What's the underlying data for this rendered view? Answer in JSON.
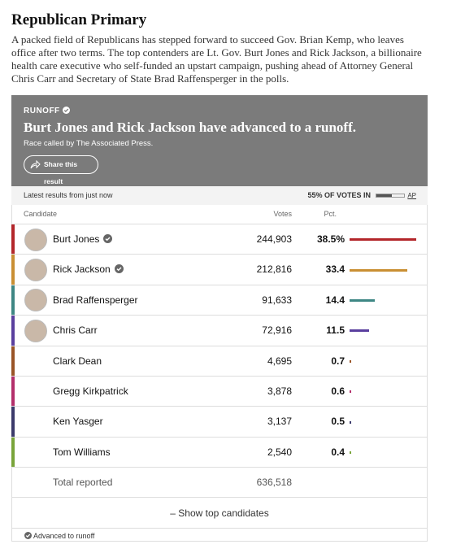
{
  "header": {
    "title": "Republican Primary",
    "intro": "A packed field of Republicans has stepped forward to succeed Gov. Brian Kemp, who leaves office after two terms. The top contenders are Lt. Gov. Burt Jones and Rick Jackson, a billionaire health care executive who self-funded an upstart campaign, pushing ahead of Attorney General Chris Carr and Secretary of State Brad Raffensperger in the polls."
  },
  "banner": {
    "tag": "RUNOFF",
    "headline": "Burt Jones and Rick Jackson have advanced to a runoff.",
    "called": "Race called by The Associated Press.",
    "share": "Share this result"
  },
  "status": {
    "latest": "Latest results from just now",
    "reporting_pct": 55,
    "reporting_label": "55% OF VOTES IN",
    "source": "AP"
  },
  "table": {
    "columns": [
      "Candidate",
      "Votes",
      "Pct."
    ],
    "rows": [
      {
        "name": "Burt Jones",
        "votes": "244,903",
        "pct": 38.5,
        "pct_label": "38.5%",
        "color": "#b3262a",
        "photo": true,
        "advanced": true
      },
      {
        "name": "Rick Jackson",
        "votes": "212,816",
        "pct": 33.4,
        "color": "#c98f33",
        "photo": true,
        "advanced": true
      },
      {
        "name": "Brad Raffensperger",
        "votes": "91,633",
        "pct": 14.4,
        "color": "#3e8784",
        "photo": true,
        "advanced": false
      },
      {
        "name": "Chris Carr",
        "votes": "72,916",
        "pct": 11.5,
        "color": "#5a3f9e",
        "photo": true,
        "advanced": false
      },
      {
        "name": "Clark Dean",
        "votes": "4,695",
        "pct": 0.7,
        "color": "#9a5426",
        "photo": false,
        "advanced": false
      },
      {
        "name": "Gregg Kirkpatrick",
        "votes": "3,878",
        "pct": 0.6,
        "color": "#b32f6b",
        "photo": false,
        "advanced": false
      },
      {
        "name": "Ken Yasger",
        "votes": "3,137",
        "pct": 0.5,
        "color": "#3b3a6b",
        "photo": false,
        "advanced": false
      },
      {
        "name": "Tom Williams",
        "votes": "2,540",
        "pct": 0.4,
        "color": "#79a43a",
        "photo": false,
        "advanced": false
      }
    ],
    "total_label": "Total reported",
    "total_votes": "636,518"
  },
  "footer": {
    "show": "– Show top candidates",
    "legend": "Advanced to runoff"
  }
}
